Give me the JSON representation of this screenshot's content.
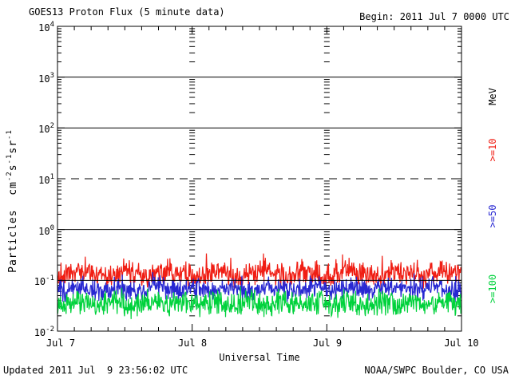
{
  "header": {
    "title": "GOES13 Proton Flux (5 minute data)",
    "begin_label": "Begin: 2011 Jul 7 0000 UTC"
  },
  "footer": {
    "updated": "Updated 2011 Jul  9 23:56:02 UTC",
    "source": "NOAA/SWPC Boulder, CO USA"
  },
  "axes": {
    "y_title": {
      "p0": "Particles  cm",
      "s0": "-2",
      "p1": "s",
      "s1": "-1",
      "p2": "sr",
      "s2": "-1"
    },
    "y_ticks": [
      {
        "base": "10",
        "exp": "4"
      },
      {
        "base": "10",
        "exp": "3"
      },
      {
        "base": "10",
        "exp": "2"
      },
      {
        "base": "10",
        "exp": "1"
      },
      {
        "base": "10",
        "exp": "0"
      },
      {
        "base": "10",
        "exp": "-1"
      },
      {
        "base": "10",
        "exp": "-2"
      }
    ],
    "x_ticks": [
      "Jul 7",
      "Jul 8",
      "Jul 9",
      "Jul 10"
    ],
    "x_title": "Universal Time",
    "right_unit_label": "MeV",
    "right_labels": [
      {
        "text": ">=10",
        "color": "#f01e14"
      },
      {
        "text": ">=50",
        "color": "#2828d2"
      },
      {
        "text": ">=100",
        "color": "#00d23c"
      }
    ]
  },
  "chart_data": {
    "type": "line",
    "title": "GOES13 Proton Flux (5 minute data)",
    "xlabel": "Universal Time",
    "ylabel": "Particles cm⁻²s⁻¹sr⁻¹",
    "x_start": "2011 Jul 7 0000 UTC",
    "x_end": "2011 Jul 10 0000 UTC",
    "x_day_labels": [
      "Jul 7",
      "Jul 8",
      "Jul 9",
      "Jul 10"
    ],
    "x_minor_tick_hours": 3,
    "ylim_log10": [
      -2,
      4
    ],
    "y_scale": "log",
    "points_per_day": 288,
    "gridlines": [
      {
        "level_log10": 3,
        "style": "solid"
      },
      {
        "level_log10": 2,
        "style": "solid"
      },
      {
        "level_log10": 1,
        "style": "dashed"
      },
      {
        "level_log10": 0,
        "style": "solid"
      },
      {
        "level_log10": -1,
        "style": "solid",
        "above_data": true
      }
    ],
    "day_boundary_tick_columns": [
      "Jul 8",
      "Jul 9"
    ],
    "series": [
      {
        "name": ">=10 MeV",
        "color": "#f01e14",
        "approx_flux": {
          "typical": 0.13,
          "min": 0.07,
          "max": 0.45
        },
        "gen": {
          "seed": 11,
          "log_mean": -0.87,
          "log_amp": 0.28,
          "spike_prob": 0.06,
          "spike_amp": 0.28,
          "wave_amp": 0.05,
          "wave_period": 97
        }
      },
      {
        "name": ">=50 MeV",
        "color": "#2828d2",
        "approx_flux": {
          "typical": 0.067,
          "min": 0.04,
          "max": 0.2
        },
        "gen": {
          "seed": 23,
          "log_mean": -1.17,
          "log_amp": 0.26,
          "spike_prob": 0.06,
          "spike_amp": 0.2,
          "wave_amp": 0.04,
          "wave_period": 83
        }
      },
      {
        "name": ">=100 MeV",
        "color": "#00d23c",
        "approx_flux": {
          "typical": 0.035,
          "min": 0.018,
          "max": 0.1
        },
        "gen": {
          "seed": 47,
          "log_mean": -1.46,
          "log_amp": 0.28,
          "spike_prob": 0.06,
          "spike_amp": 0.2,
          "wave_amp": 0.05,
          "wave_period": 71
        }
      }
    ]
  }
}
